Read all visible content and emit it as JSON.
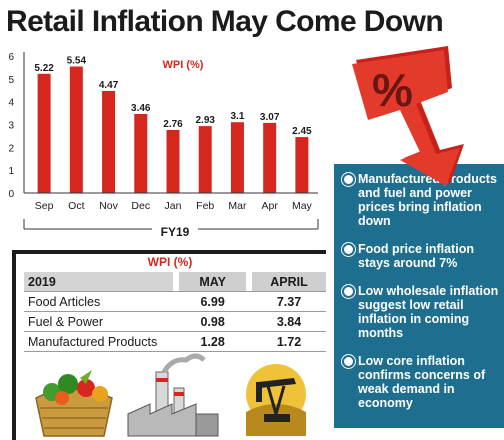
{
  "headline": "Retail Inflation May Come Down",
  "colors": {
    "bar": "#d6271f",
    "accent_red": "#d6271f",
    "panel": "#1e6f8f",
    "text": "#1b1b1b"
  },
  "chart_data": {
    "type": "bar",
    "title": "WPI (%)",
    "xlabel": "FY19",
    "ylabel": "",
    "categories": [
      "Sep",
      "Oct",
      "Nov",
      "Dec",
      "Jan",
      "Feb",
      "Mar",
      "Apr",
      "May"
    ],
    "values": [
      5.22,
      5.54,
      4.47,
      3.46,
      2.76,
      2.93,
      3.1,
      3.07,
      2.45
    ],
    "value_labels": [
      "5.22",
      "5.54",
      "4.47",
      "3.46",
      "2.76",
      "2.93",
      "3.1",
      "3.07",
      "2.45"
    ],
    "ylim": [
      0,
      6
    ],
    "yticks": [
      "0",
      "1",
      "2",
      "3",
      "4",
      "5",
      "6"
    ],
    "grid": false,
    "legend": "none",
    "bar_color": "#d6271f"
  },
  "table": {
    "title": "WPI (%)",
    "headers": [
      "2019",
      "MAY",
      "APRIL"
    ],
    "rows": [
      {
        "label": "Food Articles",
        "may": "6.99",
        "april": "7.37"
      },
      {
        "label": "Fuel & Power",
        "may": "0.98",
        "april": "3.84"
      },
      {
        "label": "Manufactured Products",
        "may": "1.28",
        "april": "1.72"
      }
    ]
  },
  "bullets": [
    "Manufactured products and fuel and power prices bring inflation down",
    "Food price inflation stays around 7%",
    "Low wholesale inflation suggest low retail inflation in coming months",
    "Low core inflation confirms concerns of weak demand in economy"
  ],
  "illustration": {
    "percent_symbol": "%",
    "icons": [
      "down-arrow-icon",
      "vegetable-basket-icon",
      "factory-icon",
      "oil-pump-icon"
    ]
  }
}
